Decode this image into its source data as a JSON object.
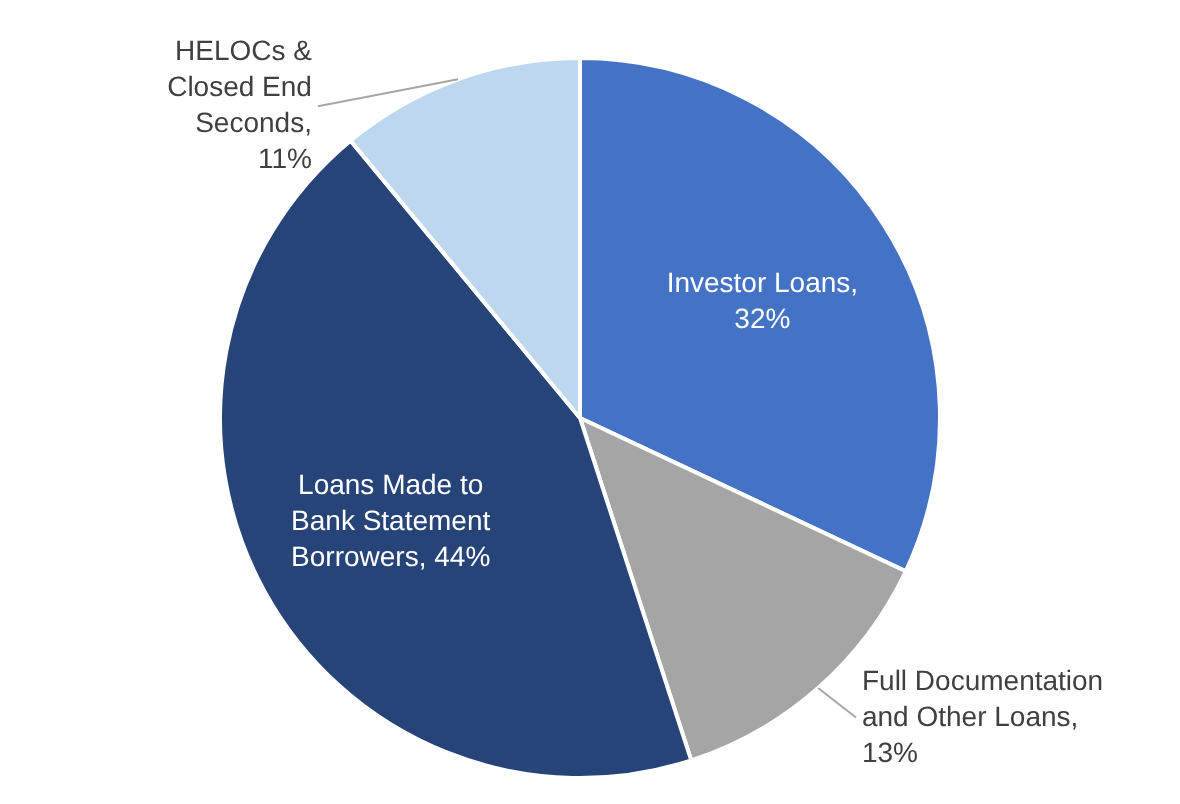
{
  "chart_data": {
    "type": "pie",
    "categories": [
      "Investor Loans, 32%",
      "Full Documentation and Other Loans, 13%",
      "Loans Made to Bank Statement Borrowers, 44%",
      "HELOCs & Closed End Seconds, 11%"
    ],
    "values": [
      32,
      13,
      44,
      11
    ],
    "colors": [
      "#4472c4",
      "#a5a5a5",
      "#264478",
      "#bdd7ee"
    ]
  }
}
